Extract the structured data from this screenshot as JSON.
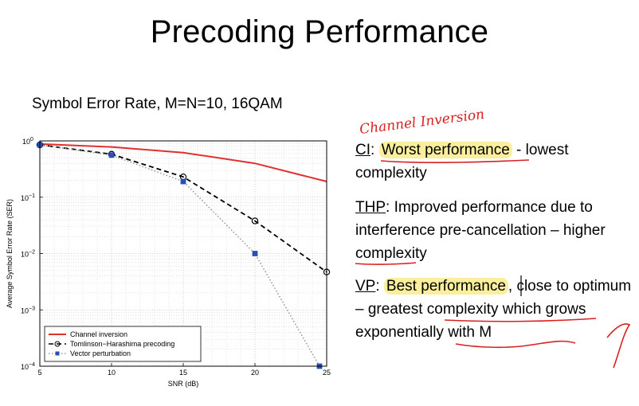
{
  "slide": {
    "title": "Precoding Performance"
  },
  "chart_title": "Symbol Error Rate, M=N=10, 16QAM",
  "chart_data": {
    "type": "line",
    "xlabel": "SNR (dB)",
    "ylabel": "Average Symbol Error Rate (SER)",
    "xlim": [
      5,
      25
    ],
    "ylim": [
      0.0001,
      1
    ],
    "yscale": "log",
    "grid": true,
    "x_ticks": [
      "5",
      "10",
      "15",
      "20",
      "25"
    ],
    "y_ticks": [
      {
        "base": "10",
        "exp": "0"
      },
      {
        "base": "10",
        "exp": "−1"
      },
      {
        "base": "10",
        "exp": "−2"
      },
      {
        "base": "10",
        "exp": "−3"
      },
      {
        "base": "10",
        "exp": "−4"
      }
    ],
    "legend_position": "bottom-left",
    "series": [
      {
        "name": "Channel inversion",
        "color": "#e03030",
        "style": "solid",
        "marker": "none",
        "x": [
          5,
          10,
          15,
          20,
          25
        ],
        "y": [
          0.88,
          0.78,
          0.62,
          0.4,
          0.19
        ]
      },
      {
        "name": "Tomlinson−Harashima precoding",
        "color": "#000000",
        "style": "dashed",
        "marker": "circle",
        "x": [
          5,
          10,
          15,
          20,
          25
        ],
        "y": [
          0.85,
          0.58,
          0.23,
          0.038,
          0.0047
        ]
      },
      {
        "name": "Vector perturbation",
        "color": "#9a9a9a",
        "style": "dotted",
        "marker": "square",
        "x": [
          5,
          10,
          15,
          20,
          24.5
        ],
        "y": [
          0.85,
          0.56,
          0.19,
          0.01,
          0.0001
        ]
      }
    ]
  },
  "bullets": {
    "ci": {
      "key": "CI",
      "sep": ": ",
      "highlight": "Worst performance",
      "rest": " - lowest complexity"
    },
    "thp": {
      "key": "THP",
      "sep": ": ",
      "text": "Improved performance due to interference pre-cancellation – higher complexity"
    },
    "vp": {
      "key": "VP",
      "sep": ": ",
      "highlight": "Best performance",
      "rest": ", close to optimum – greatest complexity which grows exponentially with M"
    }
  },
  "annotation": {
    "handwritten": "Channel Inversion",
    "ink_color": "#d92020"
  }
}
